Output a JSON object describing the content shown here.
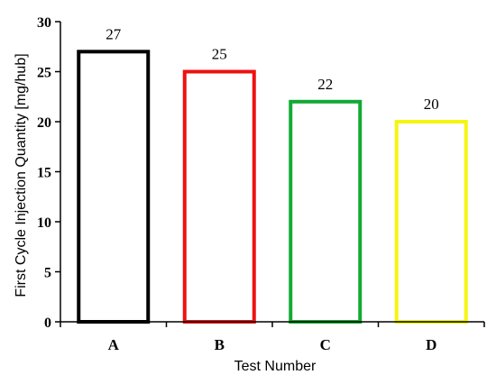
{
  "chart_data": {
    "type": "bar",
    "title": "",
    "xlabel": "Test Number",
    "ylabel": "First Cycle Injection Quantity [mg/hub]",
    "categories": [
      "A",
      "B",
      "C",
      "D"
    ],
    "values": [
      27,
      25,
      22,
      20
    ],
    "value_labels": [
      "27",
      "25",
      "22",
      "20"
    ],
    "ylim": [
      0,
      30
    ],
    "yticks": [
      "0",
      "5",
      "10",
      "15",
      "20",
      "25",
      "30"
    ],
    "bar_fill": "hollow",
    "bar_colors": [
      "#000000",
      "#ee1111",
      "#11aa33",
      "#f5f511"
    ],
    "grid": false,
    "legend": "none"
  }
}
